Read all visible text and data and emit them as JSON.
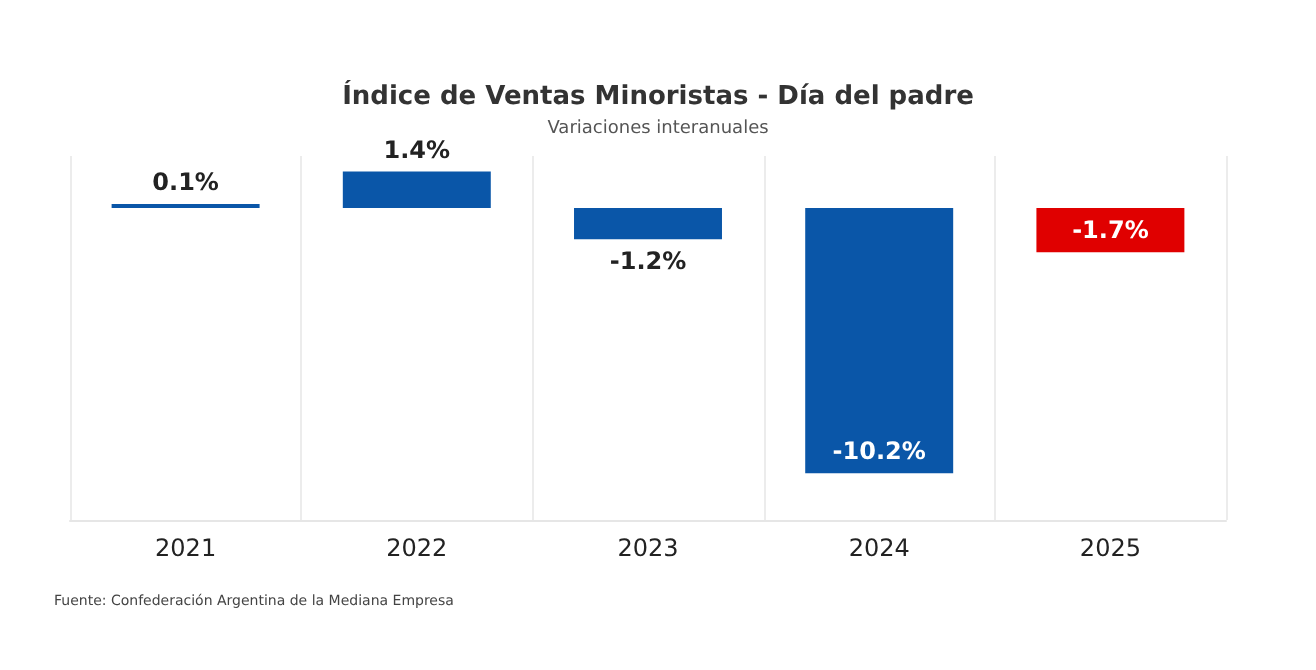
{
  "chart_data": {
    "type": "bar",
    "title": "Índice de Ventas Minoristas - Día del padre",
    "subtitle": "Variaciones interanuales",
    "categories": [
      "2021",
      "2022",
      "2023",
      "2024",
      "2025"
    ],
    "values": [
      0.1,
      1.4,
      -1.2,
      -10.2,
      -1.7
    ],
    "colors": [
      "#0a56a8",
      "#0a56a8",
      "#0a56a8",
      "#0a56a8",
      "#e00000"
    ],
    "value_labels": [
      "0.1%",
      "1.4%",
      "-1.2%",
      "-10.2%",
      "-1.7%"
    ],
    "grid": "x",
    "annotations": [
      "Fuente: Confederación Argentina de la Mediana Empresa"
    ]
  }
}
